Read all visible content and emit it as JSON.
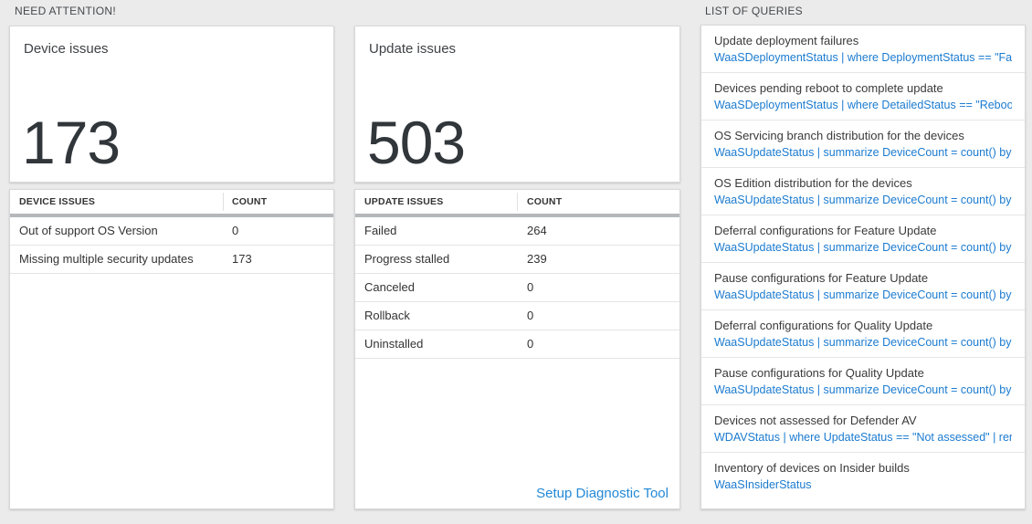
{
  "colors": {
    "page_bg": "#ebebeb",
    "link_blue": "#1b7bd0",
    "text_dark": "#333333",
    "header_bar_gray": "#b4b8bb"
  },
  "headers": {
    "need_attention": "NEED ATTENTION!",
    "list_of_queries": "LIST OF QUERIES"
  },
  "device_card": {
    "title": "Device issues",
    "count": "173",
    "table": {
      "headers": [
        "DEVICE ISSUES",
        "COUNT"
      ],
      "rows": [
        {
          "label": "Out of support OS Version",
          "count": "0"
        },
        {
          "label": "Missing multiple security updates",
          "count": "173"
        }
      ]
    }
  },
  "update_card": {
    "title": "Update issues",
    "count": "503",
    "table": {
      "headers": [
        "UPDATE ISSUES",
        "COUNT"
      ],
      "rows": [
        {
          "label": "Failed",
          "count": "264"
        },
        {
          "label": "Progress stalled",
          "count": "239"
        },
        {
          "label": "Canceled",
          "count": "0"
        },
        {
          "label": "Rollback",
          "count": "0"
        },
        {
          "label": "Uninstalled",
          "count": "0"
        }
      ]
    },
    "link": "Setup Diagnostic Tool"
  },
  "queries": {
    "items": [
      {
        "title": "Update deployment failures",
        "query": "WaaSDeploymentStatus | where DeploymentStatus == \"Failed\" |..."
      },
      {
        "title": "Devices pending reboot to complete update",
        "query": "WaaSDeploymentStatus | where DetailedStatus == \"Reboot pend..."
      },
      {
        "title": "OS Servicing branch distribution for the devices",
        "query": "WaaSUpdateStatus | summarize DeviceCount = count() by OSSer..."
      },
      {
        "title": "OS Edition distribution for the devices",
        "query": "WaaSUpdateStatus | summarize DeviceCount = count() by OSEdit..."
      },
      {
        "title": "Deferral configurations for Feature Update",
        "query": "WaaSUpdateStatus | summarize DeviceCount = count() by Featur..."
      },
      {
        "title": "Pause configurations for Feature Update",
        "query": "WaaSUpdateStatus | summarize DeviceCount = count() by Featur..."
      },
      {
        "title": "Deferral configurations for Quality Update",
        "query": "WaaSUpdateStatus | summarize DeviceCount = count() by Qualit..."
      },
      {
        "title": "Pause configurations for Quality Update",
        "query": "WaaSUpdateStatus | summarize DeviceCount = count() by Qualit..."
      },
      {
        "title": "Devices not assessed for Defender AV",
        "query": "WDAVStatus | where UpdateStatus == \"Not assessed\" | render ta..."
      },
      {
        "title": "Inventory of devices on Insider builds",
        "query": "WaaSInsiderStatus"
      }
    ]
  }
}
